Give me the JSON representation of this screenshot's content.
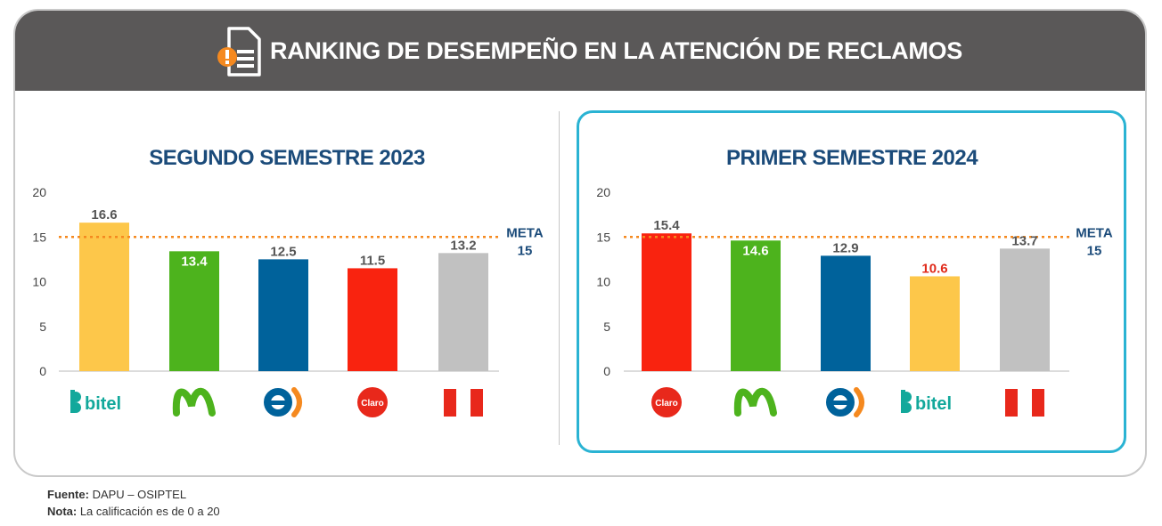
{
  "header": {
    "title": "RANKING DE DESEMPEÑO EN LA ATENCIÓN DE RECLAMOS",
    "icon": "document-alert-icon"
  },
  "colors": {
    "bitel": "#fdc74a",
    "movistar": "#4db31d",
    "entel": "#00629b",
    "claro": "#f9230f",
    "peru": "#c1c1c1",
    "meta_line": "#f5891f",
    "title": "#1b4b7a",
    "highlight": "#2ab3d3"
  },
  "chart_data": [
    {
      "type": "bar",
      "title": "SEGUNDO SEMESTRE 2023",
      "categories": [
        "bitel",
        "movistar",
        "entel",
        "claro",
        "peru"
      ],
      "category_labels": [
        "bitel",
        "",
        "",
        "Claro",
        ""
      ],
      "values": [
        16.6,
        13.4,
        12.5,
        11.5,
        13.2
      ],
      "value_labels": [
        "16.6",
        "13.4",
        "12.5",
        "11.5",
        "13.2"
      ],
      "colors": [
        "#fdc74a",
        "#4db31d",
        "#00629b",
        "#f9230f",
        "#c1c1c1"
      ],
      "ylim": [
        0,
        20
      ],
      "yticks": [
        "0",
        "5",
        "10",
        "15",
        "20"
      ],
      "meta": {
        "label": "META",
        "value": 15,
        "value_label": "15"
      }
    },
    {
      "type": "bar",
      "title": "PRIMER SEMESTRE 2024",
      "categories": [
        "claro",
        "movistar",
        "entel",
        "bitel",
        "peru"
      ],
      "category_labels": [
        "Claro",
        "",
        "",
        "bitel",
        ""
      ],
      "values": [
        15.4,
        14.6,
        12.9,
        10.6,
        13.7
      ],
      "value_labels": [
        "15.4",
        "14.6",
        "12.9",
        "10.6",
        "13.7"
      ],
      "colors": [
        "#f9230f",
        "#4db31d",
        "#00629b",
        "#fdc74a",
        "#c1c1c1"
      ],
      "ylim": [
        0,
        20
      ],
      "yticks": [
        "0",
        "5",
        "10",
        "15",
        "20"
      ],
      "meta": {
        "label": "META",
        "value": 15,
        "value_label": "15"
      }
    }
  ],
  "footer": {
    "source_label": "Fuente:",
    "source_value": " DAPU – OSIPTEL",
    "note_label": "Nota:",
    "note_value": " La calificación es de 0 a 20"
  }
}
